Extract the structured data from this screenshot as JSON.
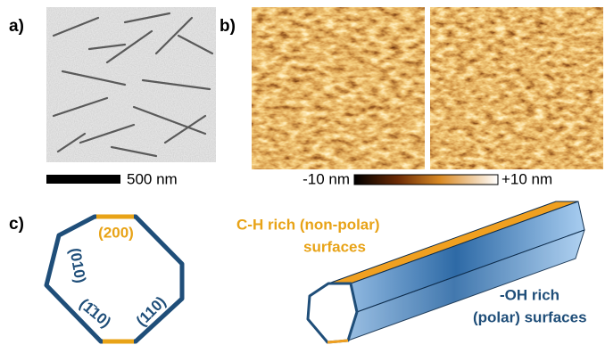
{
  "panels": {
    "a": {
      "label": "a)",
      "scale_bar": "500 nm"
    },
    "b": {
      "label": "b)",
      "colorbar": {
        "min": "-10 nm",
        "max": "+10 nm"
      }
    },
    "c": {
      "label": "c)",
      "facets": [
        "(200)",
        "(010)",
        "(1̄10)",
        "(110)"
      ],
      "annotations": {
        "nonpolar": [
          "C-H rich (non-polar)",
          "surfaces"
        ],
        "polar": [
          "-OH rich",
          "(polar) surfaces"
        ]
      }
    }
  }
}
